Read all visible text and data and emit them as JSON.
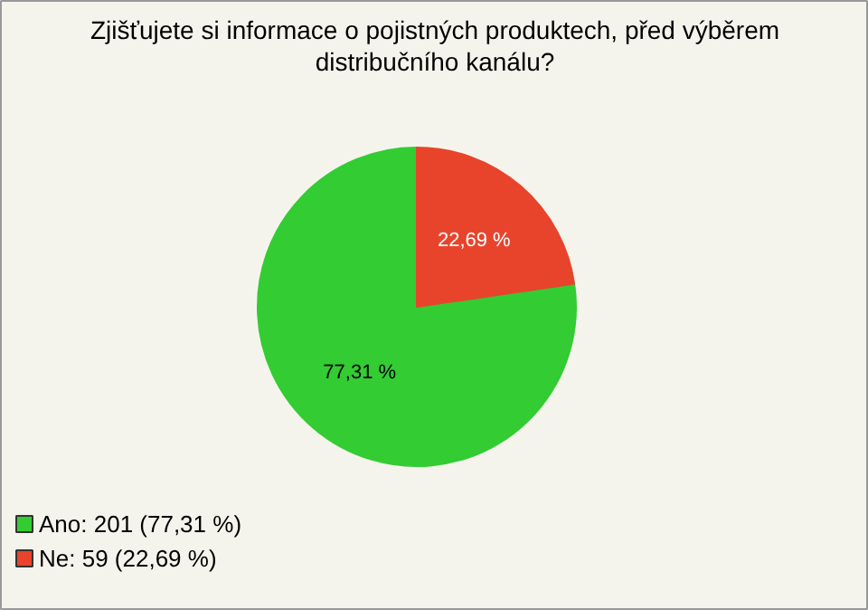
{
  "chart_data": {
    "type": "pie",
    "title": "Zjišťujete si informace o pojistných produktech, před výběrem distribučního kanálu?",
    "categories": [
      "Ano: 201 (77,31 %)",
      "Ne: 59 (22,69 %)"
    ],
    "values": [
      77.31,
      22.69
    ],
    "value_labels": [
      "77,31 %",
      "22,69 %"
    ],
    "colors": [
      "#33cc33",
      "#e8442c"
    ],
    "legend": "bottom left"
  }
}
